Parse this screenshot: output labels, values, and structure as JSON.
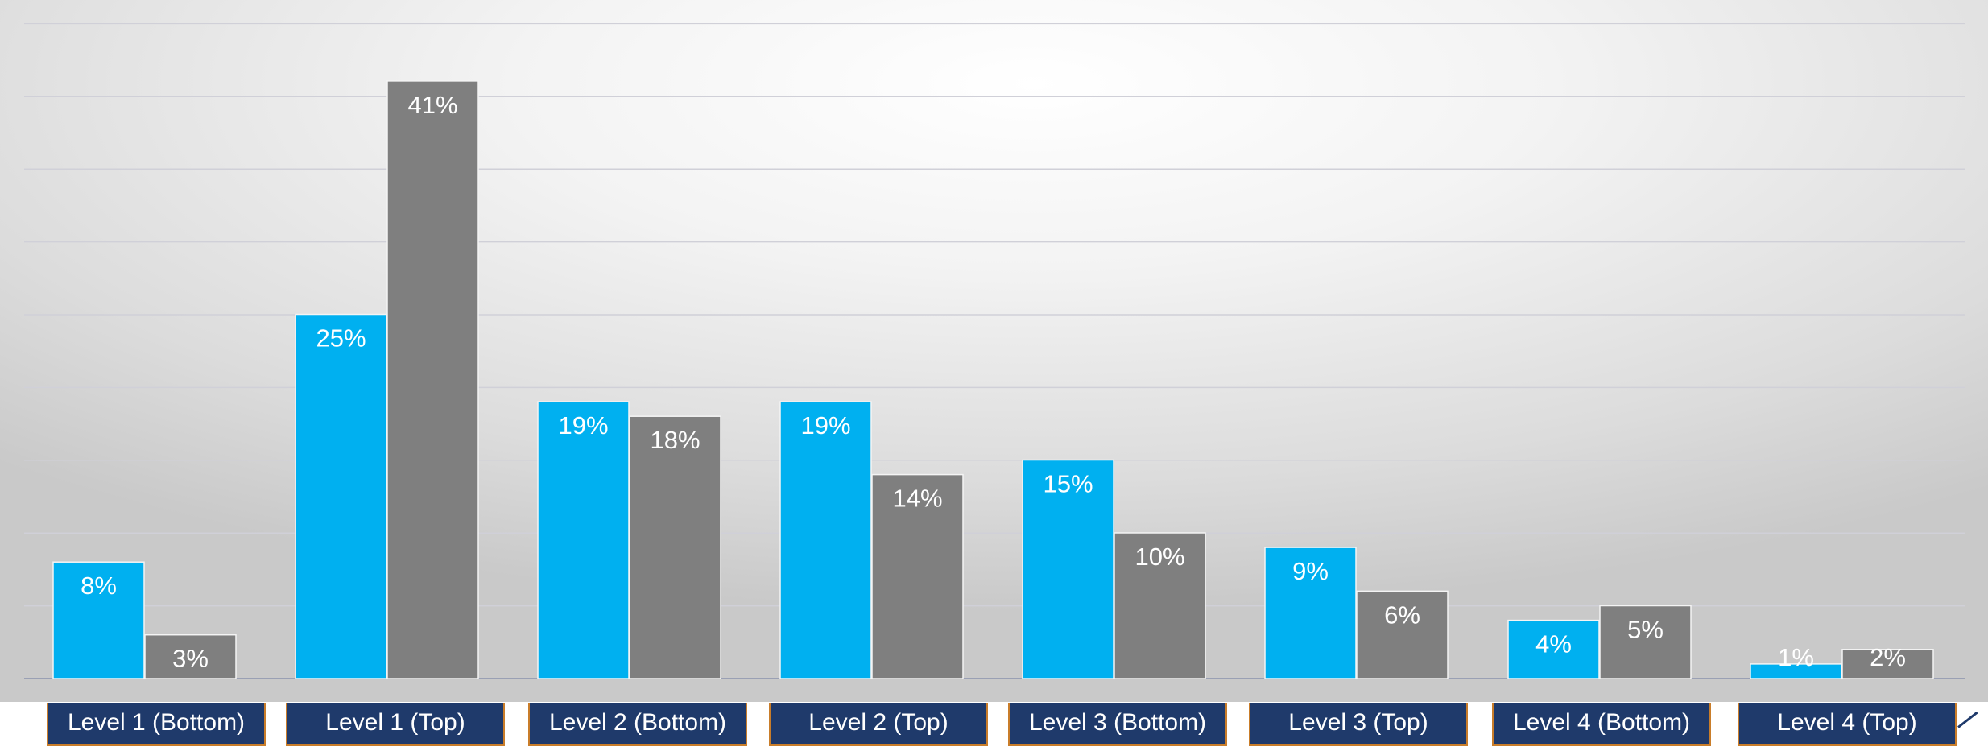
{
  "chart_data": {
    "type": "bar",
    "categories": [
      "Level 1 (Bottom)",
      "Level 1 (Top)",
      "Level 2 (Bottom)",
      "Level 2 (Top)",
      "Level 3 (Bottom)",
      "Level 3 (Top)",
      "Level 4 (Bottom)",
      "Level 4 (Top)"
    ],
    "series": [
      {
        "color": "#00b0f0",
        "values": [
          8,
          25,
          19,
          19,
          15,
          9,
          4,
          1
        ],
        "labels": [
          "8%",
          "25%",
          "19%",
          "19%",
          "15%",
          "9%",
          "4%",
          "1%"
        ]
      },
      {
        "color": "#7f7f7f",
        "values": [
          3,
          41,
          18,
          14,
          10,
          6,
          5,
          2
        ],
        "labels": [
          "3%",
          "41%",
          "18%",
          "14%",
          "10%",
          "6%",
          "5%",
          "2%"
        ]
      }
    ],
    "ylim": [
      0,
      45
    ],
    "grid": true,
    "legend": "none",
    "colors": {
      "category_box": "#1f3a6b",
      "category_border": "#c97d2a",
      "label_text": "#ffffff"
    }
  }
}
